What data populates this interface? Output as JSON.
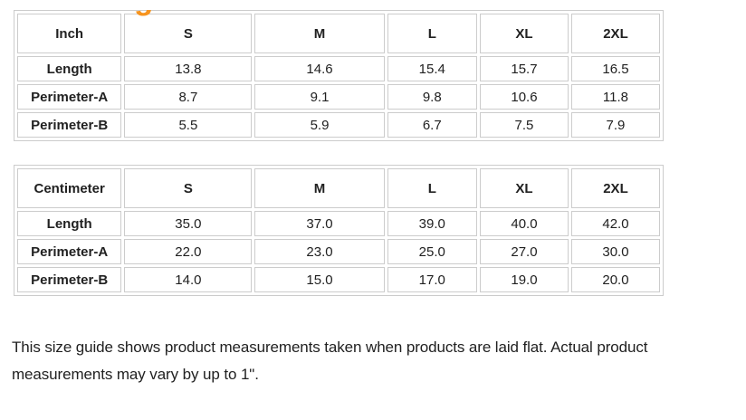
{
  "theme": {
    "accent_orange": "#F7941E",
    "table_border_gray": "#CCCCCC",
    "text_color": "#212121",
    "background": "#FFFFFF"
  },
  "clipped_heading": {
    "visible_fragment": "g"
  },
  "tables": [
    {
      "unit_header": "Inch",
      "size_headers": [
        "S",
        "M",
        "L",
        "XL",
        "2XL"
      ],
      "rows": [
        {
          "label": "Length",
          "values": [
            "13.8",
            "14.6",
            "15.4",
            "15.7",
            "16.5"
          ]
        },
        {
          "label": "Perimeter-A",
          "values": [
            "8.7",
            "9.1",
            "9.8",
            "10.6",
            "11.8"
          ]
        },
        {
          "label": "Perimeter-B",
          "values": [
            "5.5",
            "5.9",
            "6.7",
            "7.5",
            "7.9"
          ]
        }
      ]
    },
    {
      "unit_header": "Centimeter",
      "size_headers": [
        "S",
        "M",
        "L",
        "XL",
        "2XL"
      ],
      "rows": [
        {
          "label": "Length",
          "values": [
            "35.0",
            "37.0",
            "39.0",
            "40.0",
            "42.0"
          ]
        },
        {
          "label": "Perimeter-A",
          "values": [
            "22.0",
            "23.0",
            "25.0",
            "27.0",
            "30.0"
          ]
        },
        {
          "label": "Perimeter-B",
          "values": [
            "14.0",
            "15.0",
            "17.0",
            "19.0",
            "20.0"
          ]
        }
      ]
    }
  ],
  "note": "This size guide shows product measurements taken when products are laid flat. Actual product measurements may vary by up to 1\"."
}
